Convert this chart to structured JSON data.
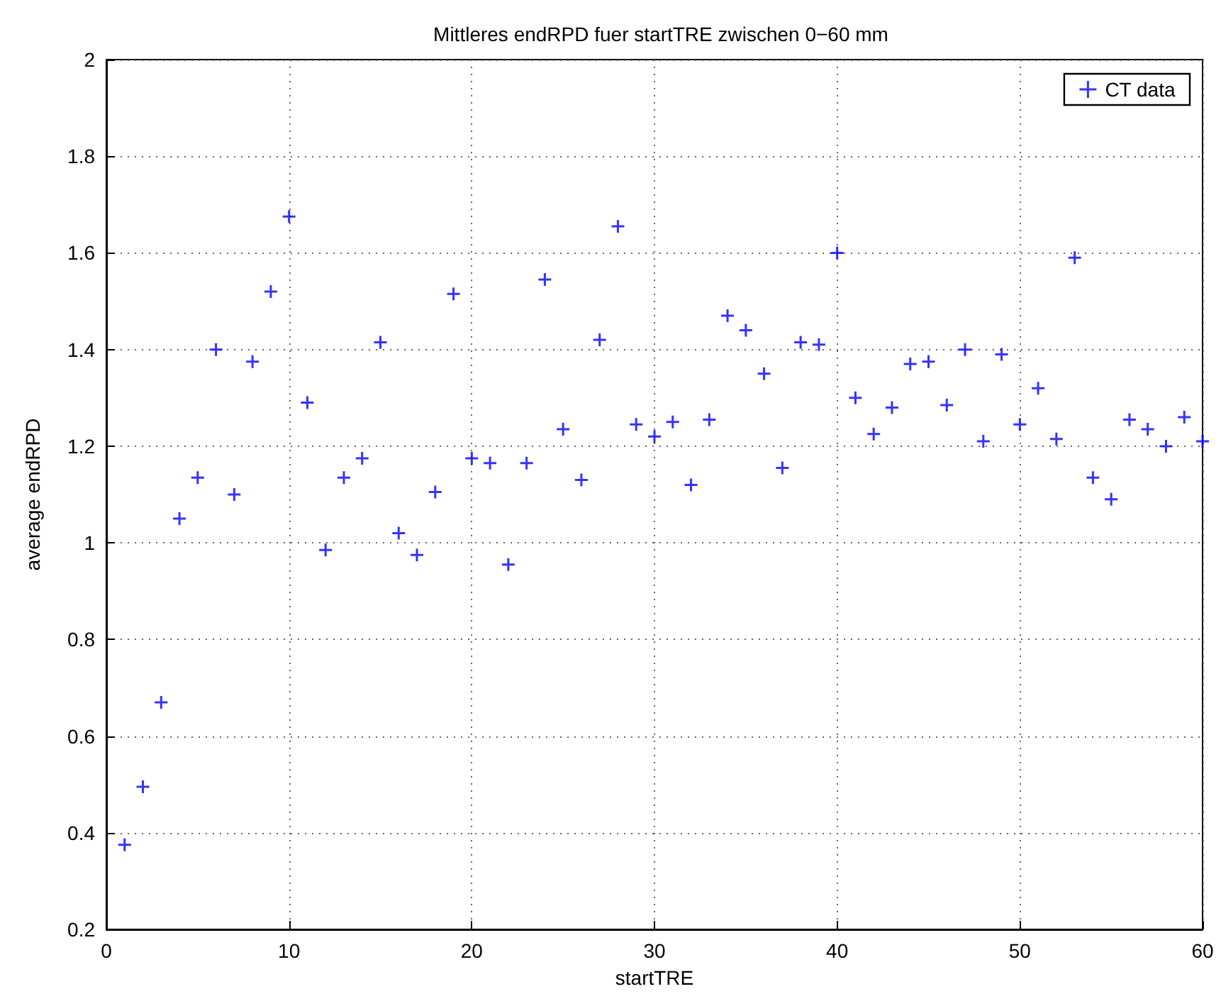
{
  "chart_data": {
    "type": "scatter",
    "title": "Mittleres endRPD fuer startTRE zwischen 0−60 mm",
    "xlabel": "startTRE",
    "ylabel": "average endRPD",
    "x": [
      1,
      2,
      3,
      4,
      5,
      6,
      7,
      8,
      9,
      10,
      11,
      12,
      13,
      14,
      15,
      16,
      17,
      18,
      19,
      20,
      21,
      22,
      23,
      24,
      25,
      26,
      27,
      28,
      29,
      30,
      31,
      32,
      33,
      34,
      35,
      36,
      37,
      38,
      39,
      40,
      41,
      42,
      43,
      44,
      45,
      46,
      47,
      48,
      49,
      50,
      51,
      52,
      53,
      54,
      55,
      56,
      57,
      58,
      59,
      60
    ],
    "series": [
      {
        "name": "CT data",
        "color": "#0000ff",
        "values": [
          0.375,
          0.495,
          0.67,
          1.05,
          1.135,
          1.4,
          1.1,
          1.375,
          1.52,
          1.675,
          1.29,
          0.985,
          1.135,
          1.175,
          1.415,
          1.02,
          0.975,
          1.105,
          1.515,
          1.175,
          1.165,
          0.955,
          1.165,
          1.545,
          1.235,
          1.13,
          1.42,
          1.655,
          1.245,
          1.22,
          1.25,
          1.12,
          1.255,
          1.47,
          1.44,
          1.35,
          1.155,
          1.415,
          1.41,
          1.6,
          1.3,
          1.225,
          1.28,
          1.37,
          1.375,
          1.285,
          1.4,
          1.21,
          1.39,
          1.245,
          1.32,
          1.215,
          1.59,
          1.135,
          1.09,
          1.255,
          1.235,
          1.2,
          1.26,
          1.21
        ]
      }
    ],
    "xlim": [
      0,
      60
    ],
    "xticks": [
      0,
      10,
      20,
      30,
      40,
      50,
      60
    ],
    "ylim": [
      0.2,
      2
    ],
    "yticks": [
      0.2,
      0.4,
      0.6,
      0.8,
      1,
      1.2,
      1.4,
      1.6,
      1.8,
      2
    ],
    "grid": true,
    "legend": "top right",
    "marker": "cross"
  }
}
